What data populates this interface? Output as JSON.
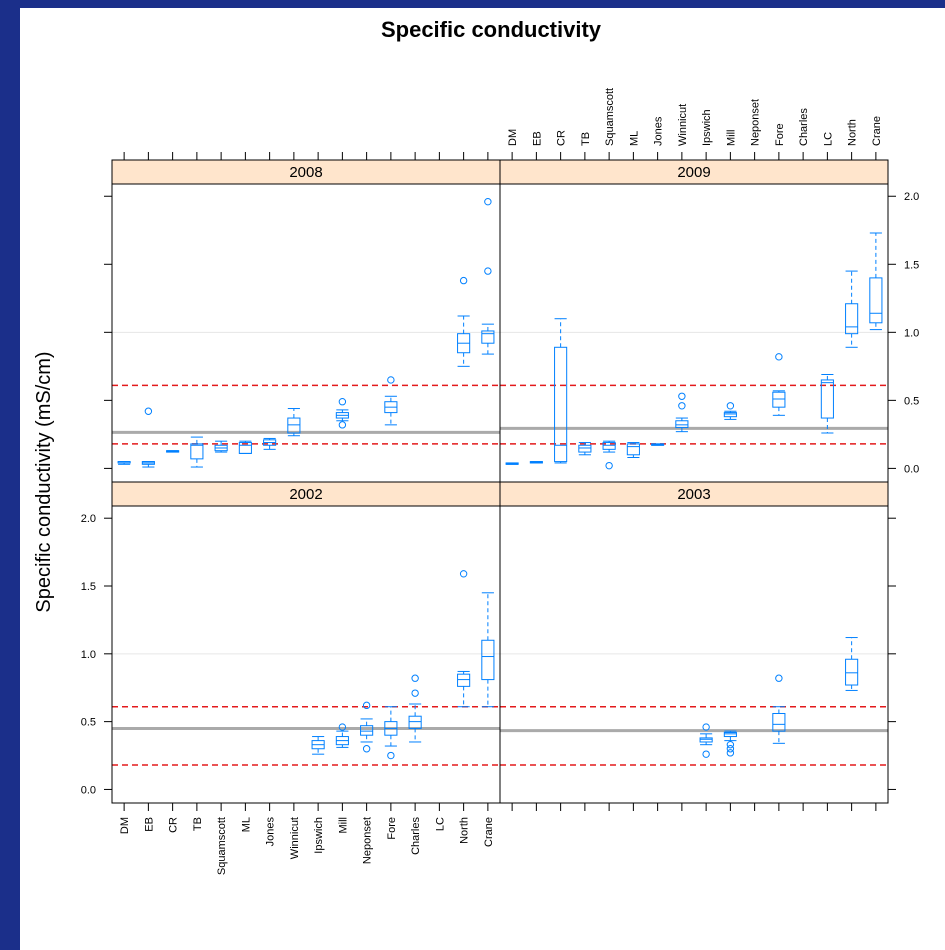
{
  "chart_data": {
    "type": "box",
    "title": "Specific conductivity",
    "ylabel": "Specific conductivity (mS/cm)",
    "categories": [
      "DM",
      "EB",
      "CR",
      "TB",
      "Squamscott",
      "ML",
      "Jones",
      "Winnicut",
      "Ipswich",
      "Mill",
      "Neponset",
      "Fore",
      "Charles",
      "LC",
      "North",
      "Crane"
    ],
    "ylim": [
      -0.1,
      2.09
    ],
    "yticks": [
      {
        "value": 0,
        "label": "0.0"
      },
      {
        "value": 0.5,
        "label": "0.5"
      },
      {
        "value": 1,
        "label": "1.0"
      },
      {
        "value": 1.5,
        "label": "1.5"
      },
      {
        "value": 2,
        "label": "2.0"
      }
    ],
    "grid_lines": [
      1
    ],
    "threshold_lines": [
      0.18,
      0.61
    ],
    "threshold_color": "#e31a1c",
    "reference_color": "#aaaaaa",
    "grid_color": "#e6e6e6",
    "color": "#0080ff",
    "strip_color": "#ffe5cc",
    "panels": [
      {
        "label": "2008",
        "reference_line": 0.265,
        "boxes": [
          {
            "min": 0.03,
            "q1": 0.04,
            "median": 0.04,
            "q3": 0.05,
            "max": 0.05
          },
          {
            "min": 0.01,
            "q1": 0.03,
            "median": 0.04,
            "q3": 0.05,
            "max": 0.05,
            "outliers": [
              0.42
            ]
          },
          {
            "min": 0.12,
            "q1": 0.12,
            "median": 0.125,
            "q3": 0.13,
            "max": 0.13
          },
          {
            "min": 0.01,
            "q1": 0.07,
            "median": 0.17,
            "q3": 0.18,
            "max": 0.23
          },
          {
            "min": 0.12,
            "q1": 0.13,
            "median": 0.15,
            "q3": 0.17,
            "max": 0.2
          },
          {
            "min": 0.11,
            "q1": 0.11,
            "median": 0.17,
            "q3": 0.19,
            "max": 0.2
          },
          {
            "min": 0.14,
            "q1": 0.17,
            "median": 0.19,
            "q3": 0.21,
            "max": 0.22
          },
          {
            "min": 0.24,
            "q1": 0.26,
            "median": 0.32,
            "q3": 0.37,
            "max": 0.44
          },
          null,
          {
            "min": 0.35,
            "q1": 0.37,
            "median": 0.39,
            "q3": 0.41,
            "max": 0.43,
            "outliers": [
              0.32,
              0.49
            ]
          },
          null,
          {
            "min": 0.32,
            "q1": 0.41,
            "median": 0.45,
            "q3": 0.49,
            "max": 0.53,
            "outliers": [
              0.65
            ]
          },
          null,
          null,
          {
            "min": 0.75,
            "q1": 0.85,
            "median": 0.92,
            "q3": 0.99,
            "max": 1.12,
            "outliers": [
              1.38
            ]
          },
          {
            "min": 0.84,
            "q1": 0.92,
            "median": 0.99,
            "q3": 1.01,
            "max": 1.06,
            "outliers": [
              1.45,
              1.96
            ]
          }
        ]
      },
      {
        "label": "2009",
        "reference_line": 0.294,
        "boxes": [
          {
            "min": 0.03,
            "q1": 0.03,
            "median": 0.035,
            "q3": 0.04,
            "max": 0.04
          },
          {
            "min": 0.04,
            "q1": 0.04,
            "median": 0.045,
            "q3": 0.05,
            "max": 0.05
          },
          {
            "min": 0.04,
            "q1": 0.05,
            "median": 0.17,
            "q3": 0.89,
            "max": 1.1
          },
          {
            "min": 0.1,
            "q1": 0.12,
            "median": 0.15,
            "q3": 0.17,
            "max": 0.19
          },
          {
            "min": 0.12,
            "q1": 0.14,
            "median": 0.17,
            "q3": 0.19,
            "max": 0.2,
            "outliers": [
              0.02
            ]
          },
          {
            "min": 0.08,
            "q1": 0.1,
            "median": 0.16,
            "q3": 0.18,
            "max": 0.19
          },
          {
            "min": 0.17,
            "q1": 0.17,
            "median": 0.175,
            "q3": 0.18,
            "max": 0.18
          },
          {
            "min": 0.27,
            "q1": 0.3,
            "median": 0.32,
            "q3": 0.35,
            "max": 0.37,
            "outliers": [
              0.46,
              0.53
            ]
          },
          null,
          {
            "min": 0.36,
            "q1": 0.38,
            "median": 0.4,
            "q3": 0.41,
            "max": 0.42,
            "outliers": [
              0.46
            ]
          },
          null,
          {
            "min": 0.39,
            "q1": 0.45,
            "median": 0.51,
            "q3": 0.56,
            "max": 0.57,
            "outliers": [
              0.82
            ]
          },
          null,
          {
            "min": 0.26,
            "q1": 0.37,
            "median": 0.63,
            "q3": 0.65,
            "max": 0.69
          },
          {
            "min": 0.89,
            "q1": 0.99,
            "median": 1.04,
            "q3": 1.21,
            "max": 1.45
          },
          {
            "min": 1.02,
            "q1": 1.07,
            "median": 1.14,
            "q3": 1.4,
            "max": 1.73
          }
        ]
      },
      {
        "label": "2002",
        "reference_line": 0.449,
        "boxes": [
          null,
          null,
          null,
          null,
          null,
          null,
          null,
          null,
          {
            "min": 0.26,
            "q1": 0.3,
            "median": 0.33,
            "q3": 0.36,
            "max": 0.39
          },
          {
            "min": 0.31,
            "q1": 0.33,
            "median": 0.36,
            "q3": 0.39,
            "max": 0.43,
            "outliers": [
              0.46
            ]
          },
          {
            "min": 0.35,
            "q1": 0.4,
            "median": 0.43,
            "q3": 0.47,
            "max": 0.52,
            "outliers": [
              0.3,
              0.62
            ]
          },
          {
            "min": 0.32,
            "q1": 0.4,
            "median": 0.45,
            "q3": 0.5,
            "max": 0.61,
            "outliers": [
              0.25
            ]
          },
          {
            "min": 0.35,
            "q1": 0.45,
            "median": 0.5,
            "q3": 0.54,
            "max": 0.63,
            "outliers": [
              0.71,
              0.82
            ]
          },
          null,
          {
            "min": 0.61,
            "q1": 0.76,
            "median": 0.81,
            "q3": 0.85,
            "max": 0.87,
            "outliers": [
              1.59
            ]
          },
          {
            "min": 0.61,
            "q1": 0.81,
            "median": 0.98,
            "q3": 1.1,
            "max": 1.45
          }
        ]
      },
      {
        "label": "2003",
        "reference_line": 0.434,
        "boxes": [
          null,
          null,
          null,
          null,
          null,
          null,
          null,
          null,
          {
            "min": 0.33,
            "q1": 0.35,
            "median": 0.37,
            "q3": 0.38,
            "max": 0.41,
            "outliers": [
              0.26,
              0.46
            ]
          },
          {
            "min": 0.36,
            "q1": 0.39,
            "median": 0.41,
            "q3": 0.42,
            "max": 0.43,
            "outliers": [
              0.27,
              0.3,
              0.33
            ]
          },
          null,
          {
            "min": 0.34,
            "q1": 0.43,
            "median": 0.48,
            "q3": 0.56,
            "max": 0.61,
            "outliers": [
              0.82
            ]
          },
          null,
          null,
          {
            "min": 0.73,
            "q1": 0.77,
            "median": 0.86,
            "q3": 0.96,
            "max": 1.12
          },
          null
        ]
      }
    ]
  }
}
